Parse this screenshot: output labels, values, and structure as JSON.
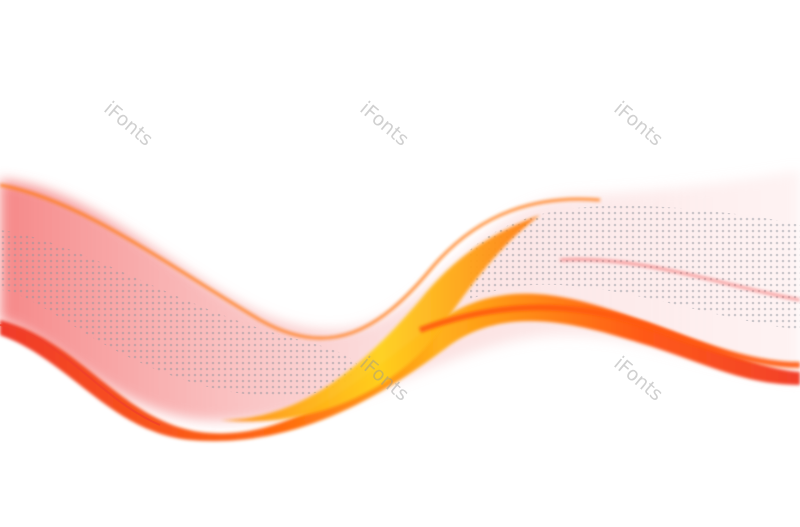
{
  "image": {
    "description_colors": {
      "red": "#f0403a",
      "orange": "#ff7a10",
      "yellow": "#ffc21a",
      "pink": "#f7b8b8",
      "grey_dots": "#9aa0a8"
    },
    "watermark": "iFonts"
  }
}
